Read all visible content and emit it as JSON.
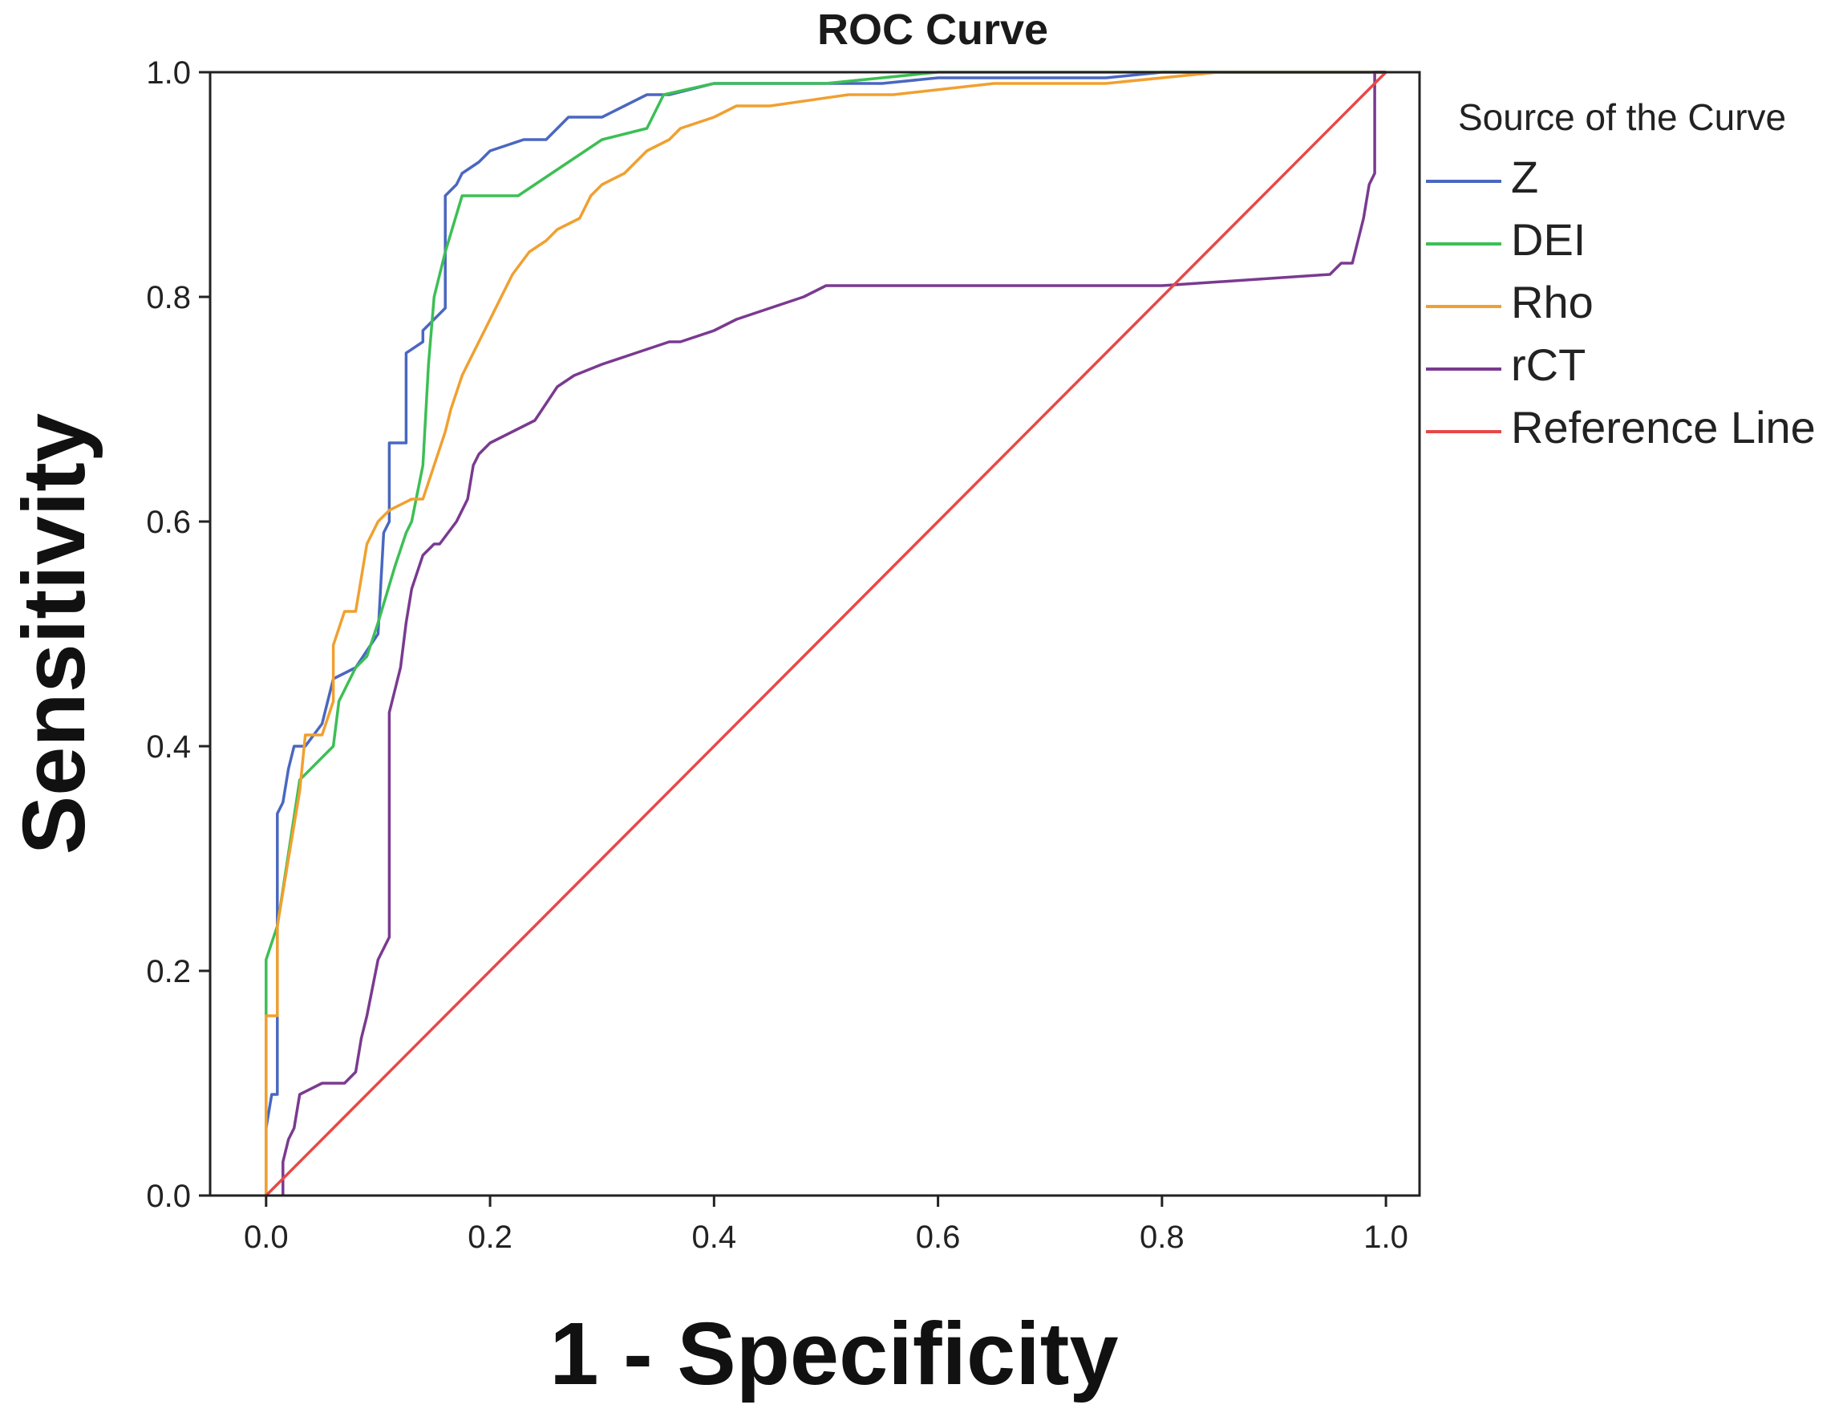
{
  "chart_data": {
    "type": "line",
    "title": "ROC Curve",
    "xlabel": "1 - Specificity",
    "ylabel": "Sensitivity",
    "xlim": [
      -0.05,
      1.03
    ],
    "ylim": [
      0.0,
      1.0
    ],
    "xticks": [
      0.0,
      0.2,
      0.4,
      0.6,
      0.8,
      1.0
    ],
    "yticks": [
      0.0,
      0.2,
      0.4,
      0.6,
      0.8,
      1.0
    ],
    "tick_labels_x": [
      "0.0",
      "0.2",
      "0.4",
      "0.6",
      "0.8",
      "1.0"
    ],
    "tick_labels_y": [
      "0.0",
      "0.2",
      "0.4",
      "0.6",
      "0.8",
      "1.0"
    ],
    "grid": false,
    "legend_title": "Source of the Curve",
    "legend_position": "right",
    "series": [
      {
        "name": "Z",
        "color": "#4a67c0",
        "points": [
          [
            0.0,
            0.0
          ],
          [
            0.0,
            0.06
          ],
          [
            0.005,
            0.09
          ],
          [
            0.01,
            0.09
          ],
          [
            0.01,
            0.34
          ],
          [
            0.015,
            0.35
          ],
          [
            0.02,
            0.38
          ],
          [
            0.025,
            0.4
          ],
          [
            0.035,
            0.4
          ],
          [
            0.05,
            0.42
          ],
          [
            0.06,
            0.46
          ],
          [
            0.08,
            0.47
          ],
          [
            0.1,
            0.5
          ],
          [
            0.105,
            0.59
          ],
          [
            0.11,
            0.6
          ],
          [
            0.11,
            0.67
          ],
          [
            0.125,
            0.67
          ],
          [
            0.125,
            0.75
          ],
          [
            0.14,
            0.76
          ],
          [
            0.14,
            0.77
          ],
          [
            0.16,
            0.79
          ],
          [
            0.16,
            0.89
          ],
          [
            0.17,
            0.9
          ],
          [
            0.175,
            0.91
          ],
          [
            0.19,
            0.92
          ],
          [
            0.2,
            0.93
          ],
          [
            0.23,
            0.94
          ],
          [
            0.25,
            0.94
          ],
          [
            0.26,
            0.95
          ],
          [
            0.27,
            0.96
          ],
          [
            0.3,
            0.96
          ],
          [
            0.32,
            0.97
          ],
          [
            0.34,
            0.98
          ],
          [
            0.36,
            0.98
          ],
          [
            0.4,
            0.99
          ],
          [
            0.5,
            0.99
          ],
          [
            0.55,
            0.99
          ],
          [
            0.6,
            0.995
          ],
          [
            0.75,
            0.995
          ],
          [
            0.8,
            1.0
          ],
          [
            1.0,
            1.0
          ]
        ]
      },
      {
        "name": "DEI",
        "color": "#3cbf55",
        "points": [
          [
            0.0,
            0.0
          ],
          [
            0.0,
            0.21
          ],
          [
            0.01,
            0.24
          ],
          [
            0.03,
            0.37
          ],
          [
            0.06,
            0.4
          ],
          [
            0.065,
            0.44
          ],
          [
            0.08,
            0.47
          ],
          [
            0.09,
            0.48
          ],
          [
            0.1,
            0.51
          ],
          [
            0.115,
            0.56
          ],
          [
            0.125,
            0.59
          ],
          [
            0.13,
            0.6
          ],
          [
            0.14,
            0.65
          ],
          [
            0.145,
            0.74
          ],
          [
            0.15,
            0.8
          ],
          [
            0.16,
            0.84
          ],
          [
            0.175,
            0.89
          ],
          [
            0.225,
            0.89
          ],
          [
            0.3,
            0.94
          ],
          [
            0.34,
            0.95
          ],
          [
            0.355,
            0.98
          ],
          [
            0.4,
            0.99
          ],
          [
            0.5,
            0.99
          ],
          [
            0.6,
            1.0
          ],
          [
            1.0,
            1.0
          ]
        ]
      },
      {
        "name": "Rho",
        "color": "#f0a030",
        "points": [
          [
            0.0,
            0.0
          ],
          [
            0.0,
            0.16
          ],
          [
            0.01,
            0.16
          ],
          [
            0.01,
            0.24
          ],
          [
            0.02,
            0.3
          ],
          [
            0.03,
            0.36
          ],
          [
            0.035,
            0.41
          ],
          [
            0.05,
            0.41
          ],
          [
            0.06,
            0.44
          ],
          [
            0.06,
            0.49
          ],
          [
            0.07,
            0.52
          ],
          [
            0.08,
            0.52
          ],
          [
            0.09,
            0.58
          ],
          [
            0.1,
            0.6
          ],
          [
            0.11,
            0.61
          ],
          [
            0.13,
            0.62
          ],
          [
            0.14,
            0.62
          ],
          [
            0.15,
            0.65
          ],
          [
            0.16,
            0.68
          ],
          [
            0.165,
            0.7
          ],
          [
            0.175,
            0.73
          ],
          [
            0.18,
            0.74
          ],
          [
            0.19,
            0.76
          ],
          [
            0.2,
            0.78
          ],
          [
            0.21,
            0.8
          ],
          [
            0.22,
            0.82
          ],
          [
            0.235,
            0.84
          ],
          [
            0.25,
            0.85
          ],
          [
            0.26,
            0.86
          ],
          [
            0.28,
            0.87
          ],
          [
            0.29,
            0.89
          ],
          [
            0.3,
            0.9
          ],
          [
            0.32,
            0.91
          ],
          [
            0.34,
            0.93
          ],
          [
            0.36,
            0.94
          ],
          [
            0.37,
            0.95
          ],
          [
            0.4,
            0.96
          ],
          [
            0.42,
            0.97
          ],
          [
            0.45,
            0.97
          ],
          [
            0.52,
            0.98
          ],
          [
            0.56,
            0.98
          ],
          [
            0.65,
            0.99
          ],
          [
            0.75,
            0.99
          ],
          [
            0.85,
            1.0
          ],
          [
            1.0,
            1.0
          ]
        ]
      },
      {
        "name": "rCT",
        "color": "#7a3a90",
        "points": [
          [
            0.015,
            0.0
          ],
          [
            0.015,
            0.03
          ],
          [
            0.02,
            0.05
          ],
          [
            0.025,
            0.06
          ],
          [
            0.03,
            0.09
          ],
          [
            0.05,
            0.1
          ],
          [
            0.07,
            0.1
          ],
          [
            0.08,
            0.11
          ],
          [
            0.085,
            0.14
          ],
          [
            0.09,
            0.16
          ],
          [
            0.1,
            0.21
          ],
          [
            0.105,
            0.22
          ],
          [
            0.11,
            0.23
          ],
          [
            0.11,
            0.43
          ],
          [
            0.12,
            0.47
          ],
          [
            0.125,
            0.51
          ],
          [
            0.13,
            0.54
          ],
          [
            0.14,
            0.57
          ],
          [
            0.15,
            0.58
          ],
          [
            0.155,
            0.58
          ],
          [
            0.17,
            0.6
          ],
          [
            0.18,
            0.62
          ],
          [
            0.185,
            0.65
          ],
          [
            0.19,
            0.66
          ],
          [
            0.2,
            0.67
          ],
          [
            0.22,
            0.68
          ],
          [
            0.24,
            0.69
          ],
          [
            0.26,
            0.72
          ],
          [
            0.275,
            0.73
          ],
          [
            0.3,
            0.74
          ],
          [
            0.33,
            0.75
          ],
          [
            0.36,
            0.76
          ],
          [
            0.37,
            0.76
          ],
          [
            0.4,
            0.77
          ],
          [
            0.42,
            0.78
          ],
          [
            0.45,
            0.79
          ],
          [
            0.48,
            0.8
          ],
          [
            0.5,
            0.81
          ],
          [
            0.55,
            0.81
          ],
          [
            0.8,
            0.81
          ],
          [
            0.95,
            0.82
          ],
          [
            0.96,
            0.83
          ],
          [
            0.97,
            0.83
          ],
          [
            0.98,
            0.87
          ],
          [
            0.985,
            0.9
          ],
          [
            0.99,
            0.91
          ],
          [
            0.99,
            1.0
          ],
          [
            1.0,
            1.0
          ]
        ]
      },
      {
        "name": "Reference Line",
        "color": "#e84848",
        "points": [
          [
            0.0,
            0.0
          ],
          [
            1.0,
            1.0
          ]
        ]
      }
    ]
  }
}
